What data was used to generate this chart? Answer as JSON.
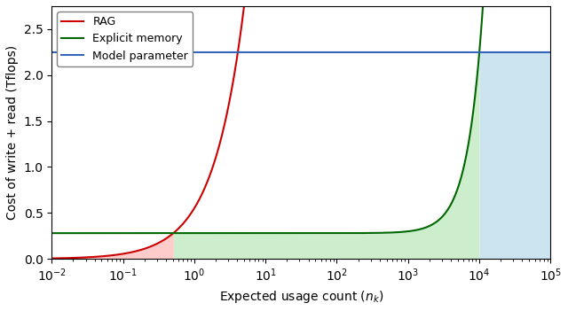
{
  "xlim": [
    0.01,
    100000.0
  ],
  "ylim": [
    0,
    2.75
  ],
  "xlabel": "Expected usage count ($n_k$)",
  "ylabel": "Cost of write + read (Tflops)",
  "model_param_value": 2.25,
  "rag_read_cost": 0.55,
  "mem_write_cost": 0.28,
  "mem_read_coeff": 1.97e-08,
  "mem_read_exponent": 2.0,
  "x_intersect_rag_mem": 0.509,
  "x_intersect_mem_model": 10000,
  "legend_labels": [
    "RAG",
    "Explicit memory",
    "Model parameter"
  ],
  "line_colors": [
    "#cc0000",
    "#006600",
    "#3366bb"
  ],
  "fill_color_red": "#ffcccc",
  "fill_color_green": "#cceecc",
  "fill_color_blue": "#cce4f0"
}
